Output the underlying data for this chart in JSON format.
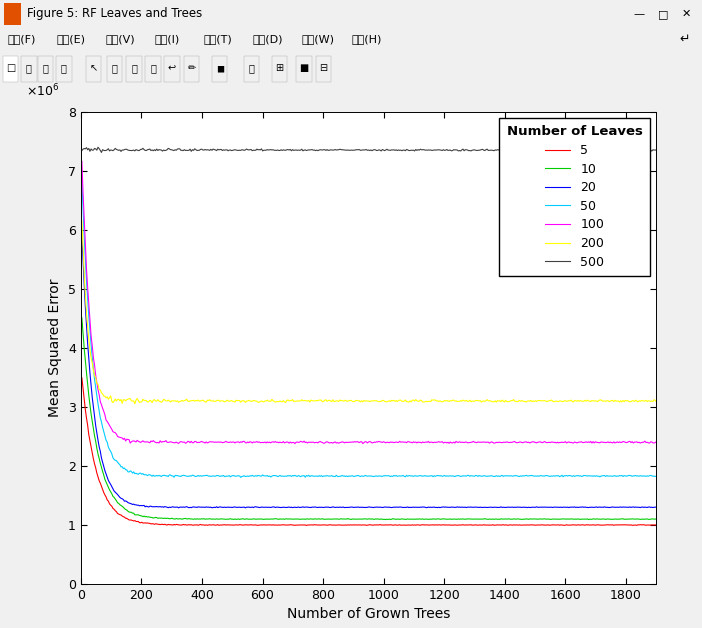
{
  "xlabel": "Number of Grown Trees",
  "ylabel": "Mean Squared Error",
  "legend_title": "Number of Leaves",
  "legend_labels": [
    "5",
    "10",
    "20",
    "50",
    "100",
    "200",
    "500"
  ],
  "line_colors": [
    "#ff0000",
    "#00cc00",
    "#0000ff",
    "#00ccff",
    "#ff00ff",
    "#ffff00",
    "#404040"
  ],
  "n_trees": 500,
  "x_max": 1900,
  "ylim": [
    0,
    8000000
  ],
  "yticks": [
    0,
    1000000,
    2000000,
    3000000,
    4000000,
    5000000,
    6000000,
    7000000,
    8000000
  ],
  "xticks": [
    0,
    200,
    400,
    600,
    800,
    1000,
    1200,
    1400,
    1600,
    1800
  ],
  "steady_values": [
    1000000,
    1100000,
    1300000,
    1830000,
    2400000,
    3100000,
    7250000
  ],
  "start_values": [
    3500000,
    4500000,
    5900000,
    6800000,
    7200000,
    6200000,
    7350000
  ],
  "convergence_speed": [
    0.08,
    0.08,
    0.1,
    0.1,
    0.12,
    0.18,
    0.0001
  ],
  "noise_scales": [
    0.008,
    0.008,
    0.008,
    0.01,
    0.01,
    0.01,
    0.003
  ],
  "bg_color": "#d3d3d3",
  "plot_bg_color": "#ffffff",
  "chrome_color": "#f0f0f0",
  "title_bar_color": "#f0f0f0",
  "figsize": [
    7.02,
    6.28
  ],
  "dpi": 100,
  "window_title": "Figure 5: RF Leaves and Trees",
  "menu_items": [
    "文件(F)",
    "编辑(E)",
    "查看(V)",
    "插入(I)",
    "工具(T)",
    "桌面(D)",
    "窗口(W)",
    "帮助(H)"
  ]
}
